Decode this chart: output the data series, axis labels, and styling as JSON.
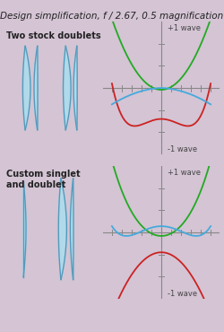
{
  "title": "Design simplification, f / 2.67, 0.5 magnification",
  "title_fontsize": 7.5,
  "bg_color": "#d4c4d4",
  "label1": "Two stock doublets",
  "label2": "Custom singlet\nand doublet",
  "label_fontsize": 7,
  "axis_label_plus": "+1 wave",
  "axis_label_minus": "-1 wave",
  "axis_label_fontsize": 6,
  "green_color": "#22aa22",
  "red_color": "#cc2222",
  "blue_color": "#44aadd",
  "lens_color": "#aaddef",
  "lens_edge_color": "#5599bb",
  "grid_color": "#888888"
}
